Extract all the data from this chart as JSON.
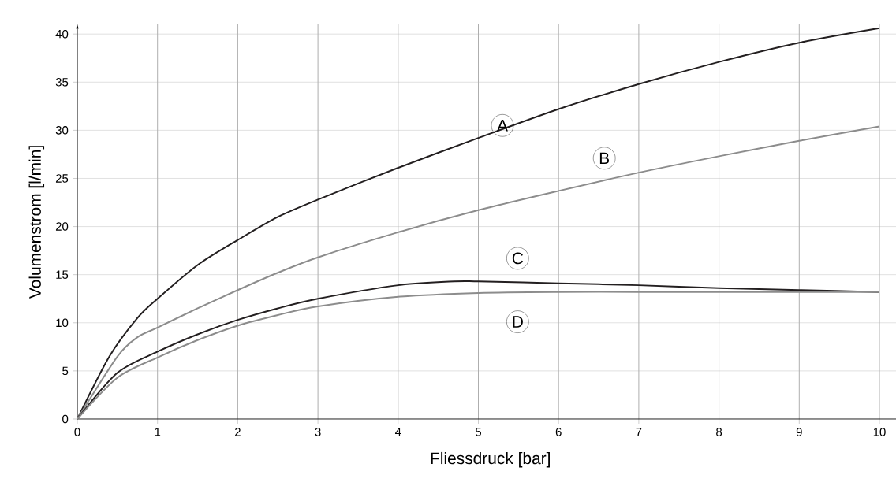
{
  "chart_data": {
    "type": "line",
    "xlabel": "Fliessdruck [bar]",
    "ylabel": "Volumenstrom [l/min]",
    "xlim": [
      0,
      10.3
    ],
    "ylim": [
      0,
      41
    ],
    "xticks": [
      0,
      1,
      2,
      3,
      4,
      5,
      6,
      7,
      8,
      9,
      10
    ],
    "yticks": [
      0,
      5,
      10,
      15,
      20,
      25,
      30,
      35,
      40
    ],
    "grid": true,
    "series": [
      {
        "color": "#231f20",
        "x": [
          0,
          0.4,
          0.75,
          1,
          1.5,
          2,
          2.5,
          3,
          4,
          5,
          6,
          7,
          8,
          9,
          10
        ],
        "values": [
          0,
          6.5,
          10.5,
          12.5,
          16,
          18.6,
          21,
          22.8,
          26.1,
          29.2,
          32.2,
          34.8,
          37.1,
          39.1,
          40.6
        ]
      },
      {
        "color": "#8c8c8c",
        "x": [
          0,
          0.5,
          0.75,
          1,
          1.5,
          2,
          2.5,
          3,
          4,
          5,
          6,
          7,
          8,
          9,
          10
        ],
        "values": [
          0,
          6.5,
          8.5,
          9.5,
          11.5,
          13.4,
          15.2,
          16.8,
          19.4,
          21.7,
          23.7,
          25.6,
          27.3,
          28.9,
          30.4
        ]
      },
      {
        "color": "#231f20",
        "x": [
          0,
          0.5,
          1,
          1.5,
          2,
          2.5,
          3,
          4,
          4.7,
          5,
          6,
          7,
          8,
          9,
          10
        ],
        "values": [
          0,
          4.8,
          7,
          8.8,
          10.3,
          11.5,
          12.5,
          13.9,
          14.3,
          14.3,
          14.1,
          13.9,
          13.6,
          13.4,
          13.2
        ]
      },
      {
        "color": "#8c8c8c",
        "x": [
          0,
          0.5,
          1,
          1.5,
          2,
          2.5,
          3,
          4,
          5,
          6,
          7,
          8,
          9,
          10
        ],
        "values": [
          0,
          4.3,
          6.4,
          8.2,
          9.7,
          10.8,
          11.7,
          12.7,
          13.1,
          13.2,
          13.2,
          13.2,
          13.2,
          13.2
        ]
      }
    ],
    "annotations": [
      {
        "text": "A",
        "x": 5.3,
        "y": 30.5
      },
      {
        "text": "B",
        "x": 6.57,
        "y": 27.1
      },
      {
        "text": "C",
        "x": 5.49,
        "y": 16.7
      },
      {
        "text": "D",
        "x": 5.49,
        "y": 10.1
      }
    ]
  }
}
